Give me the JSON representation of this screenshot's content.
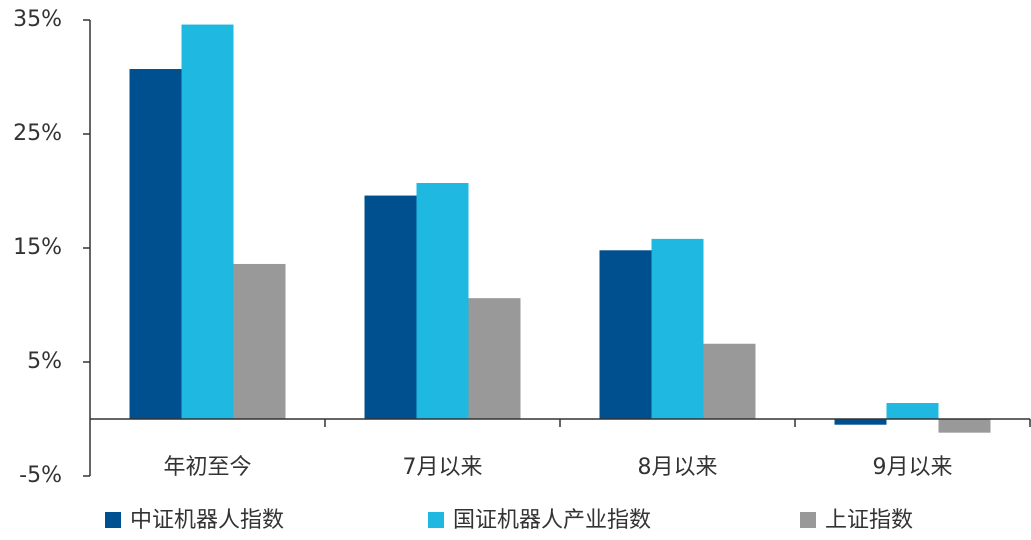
{
  "chart_data": {
    "type": "bar",
    "categories": [
      "年初至今",
      "7月以来",
      "8月以来",
      "9月以来"
    ],
    "series": [
      {
        "name": "中证机器人指数",
        "color": "#00508f",
        "values": [
          30.7,
          19.6,
          14.8,
          -0.5
        ]
      },
      {
        "name": "国证机器人产业指数",
        "color": "#1fb8e0",
        "values": [
          34.6,
          20.7,
          15.8,
          1.4
        ]
      },
      {
        "name": "上证指数",
        "color": "#999999",
        "values": [
          13.6,
          10.6,
          6.6,
          -1.2
        ]
      }
    ],
    "ylim": [
      -5,
      35
    ],
    "yticks": [
      {
        "value": -5,
        "label": "-5%"
      },
      {
        "value": 5,
        "label": "5%"
      },
      {
        "value": 15,
        "label": "15%"
      },
      {
        "value": 25,
        "label": "25%"
      },
      {
        "value": 35,
        "label": "35%"
      }
    ],
    "grid": false,
    "legend": "bottom"
  }
}
